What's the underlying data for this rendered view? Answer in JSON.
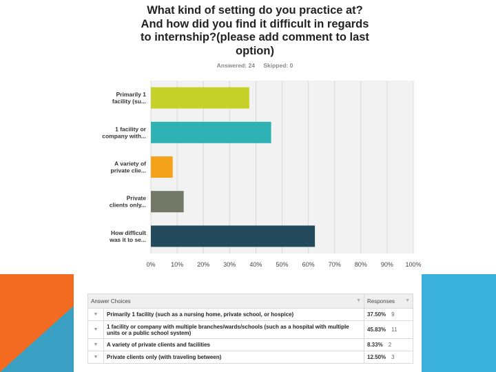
{
  "title_lines": [
    "What kind of setting do you practice at?",
    "And how did you find it difficult in regards",
    "to internship?(please add comment to last",
    "option)"
  ],
  "stats": {
    "answered": "Answered: 24",
    "skipped": "Skipped: 0"
  },
  "colors": {
    "grid_bg": "#f2f2f2",
    "orange": "#f26b21",
    "blue_tri": "#3aa0c3",
    "light_blue": "#3ab0dd"
  },
  "chart_data": {
    "type": "bar",
    "orientation": "horizontal",
    "categories": [
      [
        "Primarily 1",
        "facility (su..."
      ],
      [
        "1 facility or",
        "company with..."
      ],
      [
        "A variety of",
        "private clie..."
      ],
      [
        "Private",
        "clients only..."
      ],
      [
        "How difficult",
        "was it to se..."
      ]
    ],
    "values": [
      37.5,
      45.83,
      8.33,
      12.5,
      62.5
    ],
    "colors": [
      "#c6d12a",
      "#2fb2b3",
      "#f5a31a",
      "#727766",
      "#234b5c"
    ],
    "xlim": [
      0,
      100
    ],
    "xticks": [
      "0%",
      "10%",
      "20%",
      "30%",
      "40%",
      "50%",
      "60%",
      "70%",
      "80%",
      "90%",
      "100%"
    ],
    "grid": true
  },
  "table": {
    "header": {
      "choices": "Answer Choices",
      "responses": "Responses"
    },
    "rows": [
      {
        "text": "Primarily 1 facility (such as a nursing home, private school, or hospice)",
        "pct": "37.50%",
        "count": "9"
      },
      {
        "text": "1 facility or company with multiple branches/wards/schools (such as a hospital with multiple units or a public school system)",
        "pct": "45.83%",
        "count": "11"
      },
      {
        "text": "A variety of private clients and facilities",
        "pct": "8.33%",
        "count": "2"
      },
      {
        "text": "Private clients only (with traveling between)",
        "pct": "12.50%",
        "count": "3"
      }
    ]
  }
}
